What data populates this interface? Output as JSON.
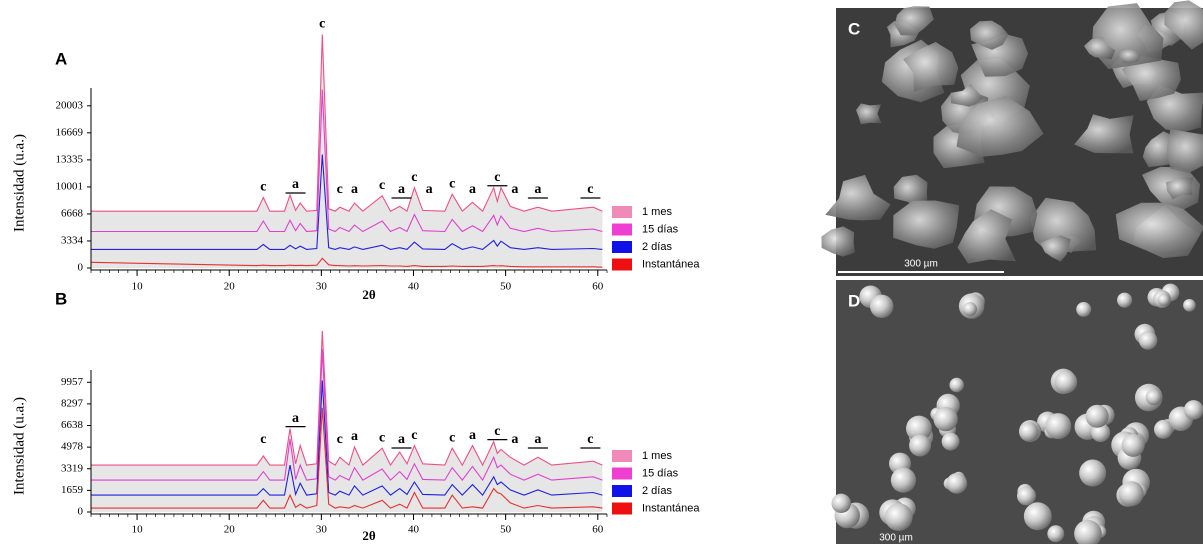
{
  "chart_data": [
    {
      "type": "line",
      "panel": "A",
      "y_label": "Intensidad (u.a.)",
      "x_label": "2θ",
      "x": [
        5,
        23,
        23.7,
        24.4,
        26,
        26.6,
        27.2,
        27.7,
        28.4,
        29.5,
        30.1,
        30.8,
        31.5,
        32,
        33,
        33.6,
        34.5,
        36.6,
        37.5,
        38.5,
        39.3,
        40.1,
        41,
        43.4,
        44.2,
        45.3,
        46.4,
        47.5,
        48.7,
        49.1,
        49.5,
        50.5,
        52,
        53.5,
        55,
        59.5,
        60.5
      ],
      "xlim": [
        5,
        61
      ],
      "ylim": [
        0,
        22200
      ],
      "xticks": [
        10,
        20,
        30,
        40,
        50,
        60
      ],
      "yticks": [
        0,
        3334,
        6668,
        10001,
        13335,
        16669,
        20003
      ],
      "area_color": "#e6e6e6",
      "series": [
        {
          "name": "1 mes",
          "color": "#f08ab8",
          "line_color": "#ee4f86",
          "values": [
            7000,
            7000,
            8700,
            7000,
            7000,
            9000,
            7100,
            8000,
            7000,
            7100,
            28800,
            7300,
            7000,
            7500,
            7000,
            8000,
            7000,
            8900,
            7000,
            7600,
            7000,
            9900,
            7100,
            7000,
            9100,
            7000,
            8100,
            7000,
            9900,
            8200,
            9900,
            7600,
            7000,
            7500,
            7000,
            7500,
            7000
          ]
        },
        {
          "name": "15 días",
          "color": "#ee3fd0",
          "line_color": "#e040d0",
          "values": [
            4500,
            4500,
            5800,
            4500,
            4500,
            5900,
            4600,
            5500,
            4500,
            4600,
            22000,
            4800,
            4500,
            5000,
            4500,
            5300,
            4500,
            5800,
            4500,
            5000,
            4500,
            6600,
            4600,
            4500,
            6000,
            4500,
            5200,
            4500,
            6500,
            5300,
            6400,
            4900,
            4500,
            4900,
            4500,
            4800,
            4500
          ]
        },
        {
          "name": "2 días",
          "color": "#1010e8",
          "line_color": "#2020e0",
          "values": [
            2300,
            2300,
            2900,
            2300,
            2300,
            2800,
            2350,
            2700,
            2300,
            2400,
            14000,
            2500,
            2300,
            2500,
            2300,
            2600,
            2300,
            2800,
            2300,
            2500,
            2300,
            3200,
            2350,
            2300,
            3000,
            2300,
            2600,
            2300,
            3400,
            2700,
            3300,
            2500,
            2300,
            2500,
            2300,
            2400,
            2300
          ]
        },
        {
          "name": "Instantánea",
          "color": "#ee1010",
          "line_color": "#e83030",
          "values": [
            700,
            300,
            350,
            300,
            300,
            350,
            300,
            330,
            300,
            350,
            1200,
            400,
            300,
            300,
            250,
            280,
            250,
            300,
            250,
            250,
            200,
            300,
            200,
            200,
            250,
            200,
            200,
            200,
            300,
            250,
            280,
            200,
            150,
            150,
            150,
            150,
            100
          ]
        }
      ],
      "peak_labels": [
        {
          "label": "c",
          "x": 23.7,
          "overline": false
        },
        {
          "label": "a",
          "x": 27.2,
          "overline": true
        },
        {
          "label": "c",
          "x": 30.1,
          "overline": false
        },
        {
          "label": "c",
          "x": 32,
          "overline": false
        },
        {
          "label": "a",
          "x": 33.6,
          "overline": false
        },
        {
          "label": "c",
          "x": 36.6,
          "overline": false
        },
        {
          "label": "a",
          "x": 38.7,
          "overline": true
        },
        {
          "label": "c",
          "x": 40.1,
          "overline": false
        },
        {
          "label": "a",
          "x": 41.7,
          "overline": false
        },
        {
          "label": "c",
          "x": 44.2,
          "overline": false
        },
        {
          "label": "a",
          "x": 46.4,
          "overline": false
        },
        {
          "label": "c",
          "x": 49.1,
          "overline": true
        },
        {
          "label": "a",
          "x": 51,
          "overline": false
        },
        {
          "label": "a",
          "x": 53.5,
          "overline": true
        },
        {
          "label": "c",
          "x": 59.2,
          "overline": true
        }
      ]
    },
    {
      "type": "line",
      "panel": "B",
      "y_label": "Intensidad (u.a.)",
      "x_label": "2θ",
      "x": [
        5,
        23,
        23.7,
        24.4,
        26,
        26.6,
        27.2,
        27.7,
        28.4,
        29.5,
        30.1,
        30.8,
        31.5,
        32,
        33,
        33.6,
        34.5,
        36.6,
        37.5,
        38.5,
        39.3,
        40.1,
        41,
        43.4,
        44.2,
        45.3,
        46.4,
        47.5,
        48.7,
        49.1,
        49.5,
        50.5,
        52,
        53.5,
        55,
        59.5,
        60.5
      ],
      "xlim": [
        5,
        61
      ],
      "ylim": [
        0,
        10900
      ],
      "xticks": [
        10,
        20,
        30,
        40,
        50,
        60
      ],
      "yticks": [
        0,
        1659,
        3319,
        4978,
        6638,
        8297,
        9957
      ],
      "area_color": "#e6e6e6",
      "series": [
        {
          "name": "1 mes",
          "color": "#f08ab8",
          "line_color": "#ee4f86",
          "values": [
            3600,
            3600,
            4300,
            3600,
            3600,
            6400,
            3700,
            5100,
            3600,
            3700,
            13900,
            3900,
            3600,
            4200,
            3600,
            5000,
            3600,
            4900,
            3600,
            4600,
            3700,
            5100,
            3700,
            3600,
            4900,
            3600,
            5100,
            3600,
            5400,
            4500,
            4800,
            4200,
            3600,
            4200,
            3600,
            3900,
            3600
          ]
        },
        {
          "name": "15 días",
          "color": "#ee3fd0",
          "line_color": "#e040d0",
          "values": [
            2450,
            2450,
            3100,
            2450,
            2450,
            5600,
            2500,
            3600,
            2450,
            2550,
            12500,
            2700,
            2450,
            2800,
            2450,
            3400,
            2450,
            3300,
            2450,
            3100,
            2500,
            3700,
            2500,
            2450,
            3400,
            2450,
            3500,
            2450,
            4200,
            3400,
            3600,
            2900,
            2450,
            2900,
            2450,
            2700,
            2450
          ]
        },
        {
          "name": "2 días",
          "color": "#1010e8",
          "line_color": "#2020e0",
          "values": [
            1300,
            1300,
            1800,
            1300,
            1300,
            3600,
            1350,
            2200,
            1300,
            1400,
            10100,
            1500,
            1300,
            1600,
            1300,
            2000,
            1300,
            2000,
            1300,
            1800,
            1350,
            2300,
            1350,
            1300,
            2100,
            1300,
            2100,
            1300,
            2700,
            2100,
            2300,
            1700,
            1300,
            1700,
            1300,
            1500,
            1300
          ]
        },
        {
          "name": "Instantánea",
          "color": "#ee1010",
          "line_color": "#e83030",
          "values": [
            300,
            300,
            900,
            300,
            300,
            1300,
            350,
            600,
            300,
            500,
            8000,
            600,
            300,
            400,
            300,
            500,
            300,
            900,
            300,
            600,
            300,
            1500,
            300,
            300,
            1300,
            300,
            400,
            300,
            1800,
            1500,
            1400,
            700,
            300,
            500,
            300,
            400,
            300
          ]
        }
      ],
      "peak_labels": [
        {
          "label": "c",
          "x": 23.7,
          "overline": false
        },
        {
          "label": "a",
          "x": 27.2,
          "overline": true
        },
        {
          "label": "c",
          "x": 32,
          "overline": false
        },
        {
          "label": "a",
          "x": 33.6,
          "overline": false
        },
        {
          "label": "c",
          "x": 36.6,
          "overline": false
        },
        {
          "label": "a",
          "x": 38.7,
          "overline": true
        },
        {
          "label": "c",
          "x": 40.1,
          "overline": false
        },
        {
          "label": "c",
          "x": 44.2,
          "overline": false
        },
        {
          "label": "a",
          "x": 46.4,
          "overline": false
        },
        {
          "label": "c",
          "x": 49.1,
          "overline": true
        },
        {
          "label": "a",
          "x": 51,
          "overline": false
        },
        {
          "label": "a",
          "x": 53.5,
          "overline": true
        },
        {
          "label": "c",
          "x": 59.2,
          "overline": true
        }
      ]
    }
  ],
  "images": [
    {
      "panel": "C",
      "scale_bar": "300 µm"
    },
    {
      "panel": "D",
      "scale_bar": "300 µm"
    }
  ]
}
